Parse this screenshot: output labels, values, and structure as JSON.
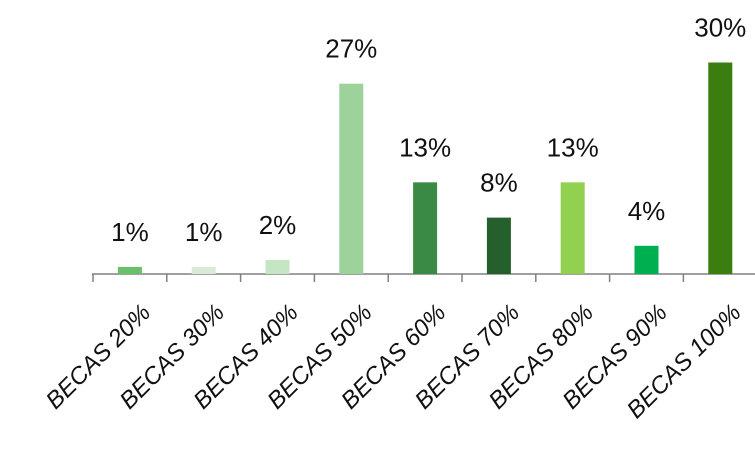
{
  "chart_data": {
    "type": "bar",
    "categories": [
      "BECAS 20%",
      "BECAS 30%",
      "BECAS 40%",
      "BECAS 50%",
      "BECAS 60%",
      "BECAS 70%",
      "BECAS 80%",
      "BECAS 90%",
      "BECAS 100%"
    ],
    "values": [
      1,
      1,
      2,
      27,
      13,
      8,
      13,
      4,
      30
    ],
    "data_labels": [
      "1%",
      "1%",
      "2%",
      "27%",
      "13%",
      "8%",
      "13%",
      "4%",
      "30%"
    ],
    "colors": [
      "#6abf69",
      "#d9ead7",
      "#c5e6c2",
      "#9dd39b",
      "#3a8a45",
      "#255f2b",
      "#92d050",
      "#00b050",
      "#3b7d0f"
    ],
    "ylim": [
      0,
      30
    ],
    "grid": false,
    "legend": "none",
    "title": "",
    "xlabel": "",
    "ylabel": ""
  }
}
